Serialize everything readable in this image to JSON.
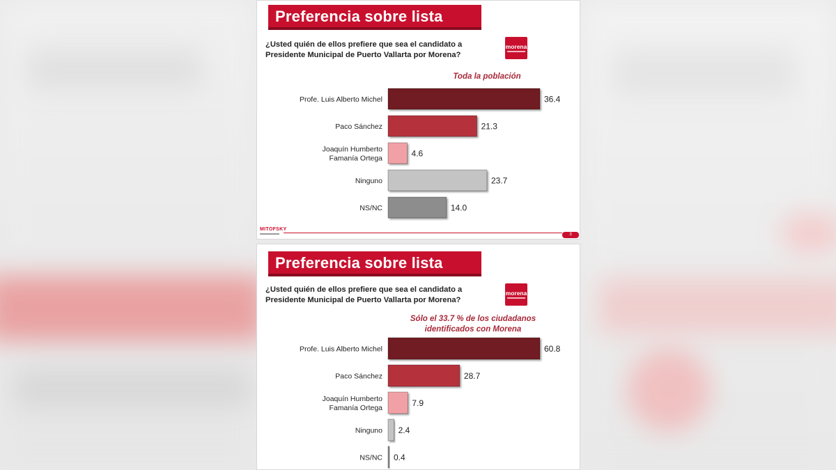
{
  "slides": [
    {
      "title": "Preferencia sobre lista",
      "question": "¿Usted quién de ellos prefiere que sea el candidato a Presidente Municipal de Puerto Vallarta por Morena?",
      "logo_text": "morena",
      "footer_brand": "MITOFSKY",
      "page_number": "3",
      "chart_data": {
        "type": "bar",
        "orientation": "horizontal",
        "title": "Toda la población",
        "categories": [
          "Profe. Luis Alberto Michel",
          "Paco Sánchez",
          "Joaquín Humberto Famanía Ortega",
          "Ninguno",
          "NS/NC"
        ],
        "values": [
          36.4,
          21.3,
          4.6,
          23.7,
          14.0
        ],
        "value_labels": [
          "36.4",
          "21.3",
          "4.6",
          "23.7",
          "14.0"
        ],
        "colors": [
          "#6f1d23",
          "#b5333d",
          "#f1a1a6",
          "#c4c4c4",
          "#8d8d8d"
        ],
        "xlim": [
          0,
          40
        ],
        "grid": false,
        "legend": "none"
      }
    },
    {
      "title": "Preferencia sobre lista",
      "question": "¿Usted quién de ellos prefiere que sea el candidato a Presidente Municipal de Puerto Vallarta por Morena?",
      "logo_text": "morena",
      "chart_data": {
        "type": "bar",
        "orientation": "horizontal",
        "title": "Sólo el 33.7 % de los ciudadanos identificados con Morena",
        "categories": [
          "Profe. Luis Alberto Michel",
          "Paco Sánchez",
          "Joaquín Humberto Famanía Ortega",
          "Ninguno",
          "NS/NC"
        ],
        "values": [
          60.8,
          28.7,
          7.9,
          2.4,
          0.4
        ],
        "value_labels": [
          "60.8",
          "28.7",
          "7.9",
          "2.4",
          "0.4"
        ],
        "colors": [
          "#6f1d23",
          "#b5333d",
          "#f1a1a6",
          "#c4c4c4",
          "#8d8d8d"
        ],
        "xlim": [
          0,
          67
        ],
        "grid": false,
        "legend": "none"
      }
    }
  ]
}
